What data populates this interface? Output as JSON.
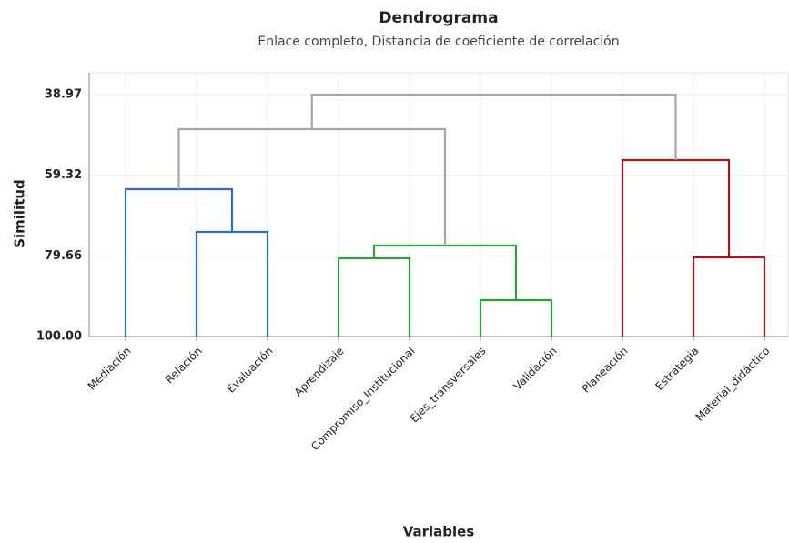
{
  "chart_data": {
    "type": "dendrogram",
    "title": "Dendrograma",
    "subtitle": "Enlace completo, Distancia de coeficiente de correlación",
    "y_label": "Similitud",
    "x_label": "Variables",
    "leaves": [
      "Mediación",
      "Relación",
      "Evaluación",
      "Aprendizaje",
      "Compromiso_Institucional",
      "Ejes_transversales",
      "Validación",
      "Planeación",
      "Estrategia",
      "Material_didáctico"
    ],
    "merges": [
      {
        "children": [
          1,
          2
        ],
        "value": 73.62,
        "color": "#2f6fc2"
      },
      {
        "children": [
          0,
          10
        ],
        "value": 62.83,
        "color": "#2f6fc2"
      },
      {
        "children": [
          3,
          4
        ],
        "value": 80.27,
        "color": "#2a9d3c"
      },
      {
        "children": [
          5,
          6
        ],
        "value": 90.83,
        "color": "#2a9d3c"
      },
      {
        "children": [
          12,
          13
        ],
        "value": 77.06,
        "color": "#2a9d3c"
      },
      {
        "children": [
          11,
          14
        ],
        "value": 47.69,
        "color": "#a6a6a6"
      },
      {
        "children": [
          8,
          9
        ],
        "value": 80.04,
        "color": "#a01a1d"
      },
      {
        "children": [
          7,
          16
        ],
        "value": 55.49,
        "color": "#a01a1d"
      },
      {
        "children": [
          15,
          17
        ],
        "value": 38.97,
        "color": "#a6a6a6"
      }
    ],
    "ylim": [
      38.97,
      {
        "value": 100,
        "label": "100.00"
      }
    ],
    "yticks": [
      38.97,
      59.32,
      79.66,
      {
        "value": 100,
        "label": "100.00"
      }
    ],
    "grid": true
  }
}
